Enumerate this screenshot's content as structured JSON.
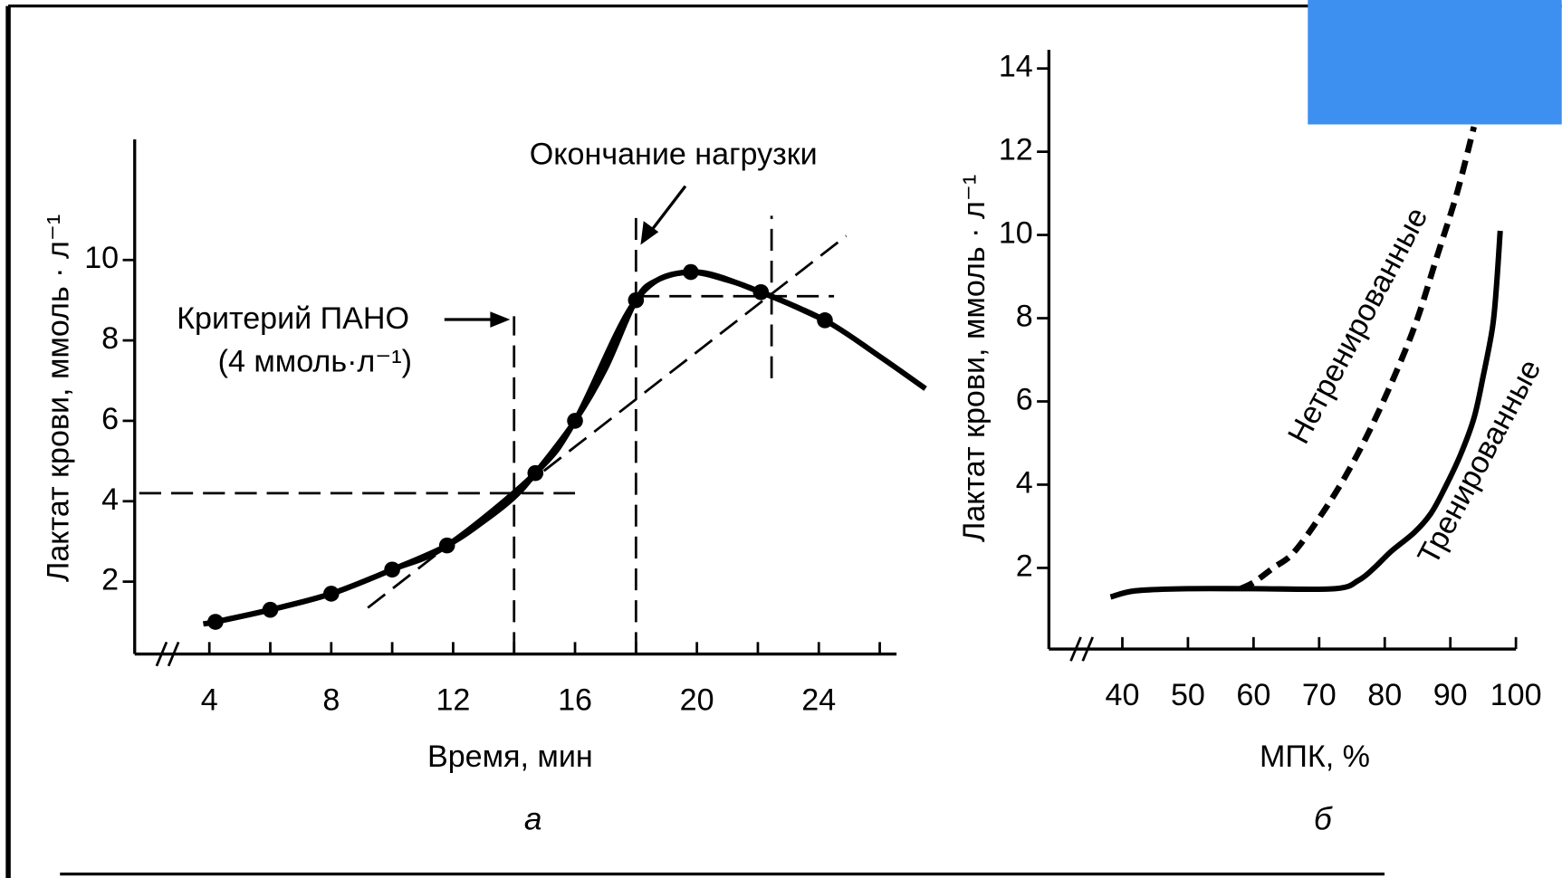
{
  "chart_data": [
    {
      "type": "line",
      "xlabel": "Время, мин",
      "ylabel": "Лактат крови, ммоль · л⁻¹",
      "panel": "а",
      "xlim": [
        1.55,
        26.55
      ],
      "ylim": [
        0.2,
        13
      ],
      "xticks": [
        4,
        8,
        12,
        16,
        20,
        24
      ],
      "xminor_ticks": [
        6,
        10,
        14,
        18,
        22,
        26
      ],
      "yticks": [
        2,
        4,
        6,
        8,
        10
      ],
      "series": [
        {
          "color": "#000000",
          "markers": false,
          "x": [
            3.8,
            4.2,
            6,
            8,
            10,
            11.8,
            13,
            14,
            14.7,
            16,
            17,
            18,
            18.7,
            19.8,
            21,
            22.1,
            24.2,
            26,
            27.5
          ],
          "values": [
            0.95,
            1.0,
            1.3,
            1.7,
            2.3,
            2.9,
            3.5,
            4.1,
            4.7,
            6.0,
            7.3,
            9.0,
            9.5,
            9.7,
            9.5,
            9.2,
            8.5,
            7.6,
            6.8
          ]
        },
        {
          "color": "#000000",
          "markers": true,
          "x": [
            4.2,
            6,
            8,
            10,
            11.8,
            14.7,
            16,
            18,
            19.8,
            22.1,
            24.2
          ],
          "values": [
            1.0,
            1.3,
            1.7,
            2.3,
            2.9,
            4.7,
            6.0,
            9.0,
            9.7,
            9.2,
            8.5
          ]
        }
      ],
      "dashed_lines": [
        {
          "x": [
            1.7,
            16.0
          ],
          "y": [
            4.2,
            4.2
          ]
        },
        {
          "x": [
            14,
            14
          ],
          "y": [
            0.2,
            8.6
          ]
        },
        {
          "x": [
            18,
            18
          ],
          "y": [
            0.2,
            11.1
          ]
        },
        {
          "x": [
            22.45,
            22.45
          ],
          "y": [
            7.06,
            11.1
          ]
        },
        {
          "x": [
            18.05,
            24.5
          ],
          "y": [
            9.1,
            9.1
          ]
        },
        {
          "x": [
            9.2,
            24.9
          ],
          "y": [
            1.35,
            10.6
          ]
        }
      ],
      "annotations": [
        "Окончание нагрузки",
        "Критерий ПАНО",
        "(4 ммоль·л⁻¹)"
      ]
    },
    {
      "type": "line",
      "xlabel": "МПК, %",
      "ylabel": "Лактат крови, ммоль · л⁻¹",
      "panel": "б",
      "xlim": [
        28.8,
        100
      ],
      "ylim": [
        0.05,
        14.45
      ],
      "xticks": [
        40,
        50,
        60,
        70,
        80,
        90,
        100
      ],
      "yticks": [
        2,
        4,
        6,
        8,
        10,
        12,
        14
      ],
      "series": [
        {
          "name": "Нетренированные",
          "color": "#000000",
          "dash": true,
          "x": [
            58,
            60,
            63,
            66,
            70,
            74,
            78,
            82,
            85,
            88,
            91,
            93.6
          ],
          "values": [
            1.5,
            1.65,
            2.0,
            2.35,
            3.2,
            4.2,
            5.4,
            6.8,
            8.0,
            9.5,
            11.0,
            12.6
          ]
        },
        {
          "name": "Тренированные",
          "color": "#000000",
          "dash": false,
          "x": [
            38.2,
            42,
            50,
            60,
            72.4,
            76,
            78.4,
            81,
            84.5,
            87,
            89.1,
            91.5,
            93.6,
            95,
            96.4,
            97,
            97.6
          ],
          "values": [
            1.3,
            1.45,
            1.5,
            1.5,
            1.5,
            1.7,
            2.0,
            2.4,
            2.85,
            3.3,
            3.9,
            4.7,
            5.6,
            6.6,
            7.75,
            8.7,
            10.1
          ]
        }
      ]
    }
  ]
}
